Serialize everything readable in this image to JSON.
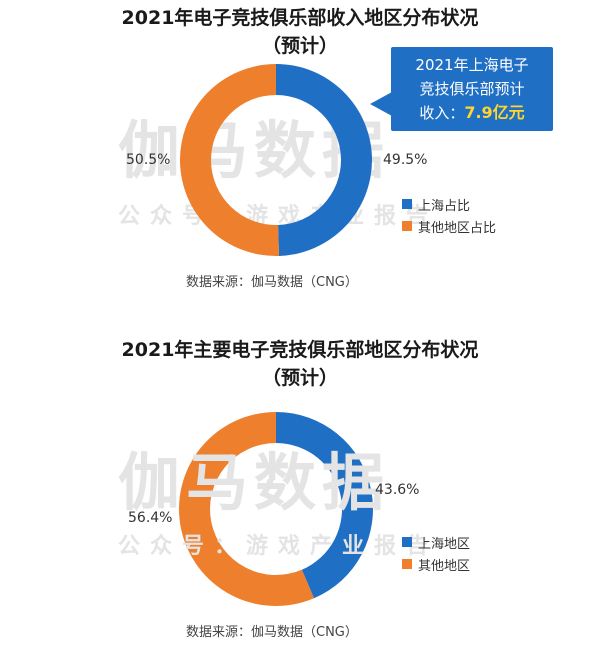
{
  "chart1": {
    "title_line1": "2021年电子竞技俱乐部收入地区分布状况",
    "title_line2": "（预计）",
    "callout": {
      "line1": "2021年上海电子",
      "line2": "竞技俱乐部预计",
      "prefix": "收入：",
      "value": "7.9亿元"
    },
    "source": "数据来源：伽马数据（CNG）"
  },
  "chart2": {
    "title_line1": "2021年主要电子竞技俱乐部地区分布状况",
    "title_line2": "（预计）",
    "source": "数据来源：伽马数据（CNG）"
  },
  "watermark": {
    "big": "伽马数据",
    "small": "公众号：游戏产业报告"
  },
  "chart_data": [
    {
      "type": "pie",
      "title": "2021年电子竞技俱乐部收入地区分布状况（预计）",
      "categories": [
        "上海占比",
        "其他地区占比"
      ],
      "values": [
        49.5,
        50.5
      ],
      "labels": [
        "49.5%",
        "50.5%"
      ],
      "colors": [
        "#1f6fc5",
        "#ee7f2d"
      ],
      "legend_position": "bottom-right"
    },
    {
      "type": "pie",
      "title": "2021年主要电子竞技俱乐部地区分布状况（预计）",
      "categories": [
        "上海地区",
        "其他地区"
      ],
      "values": [
        43.6,
        56.4
      ],
      "labels": [
        "43.6%",
        "56.4%"
      ],
      "colors": [
        "#1f6fc5",
        "#ee7f2d"
      ],
      "legend_position": "bottom-right"
    }
  ]
}
